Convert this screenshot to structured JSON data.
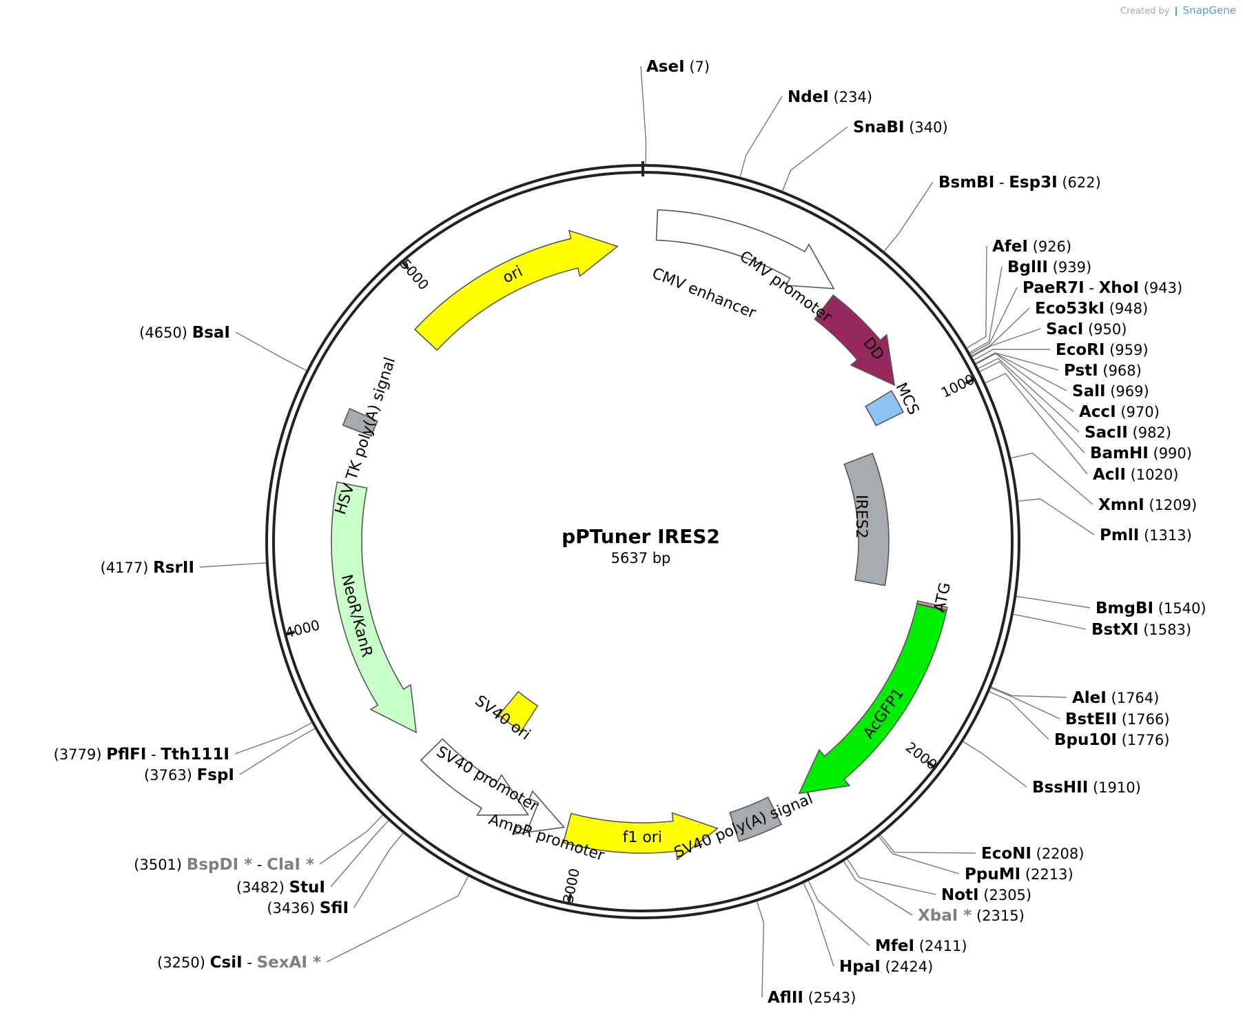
{
  "credit": {
    "prefix": "Created by",
    "brand": "SnapGene"
  },
  "plasmid": {
    "name": "pPTuner IRES2",
    "length_label": "5637 bp",
    "length": 5637
  },
  "ticks": [
    {
      "pos": 1000,
      "label": "1000"
    },
    {
      "pos": 2000,
      "label": "2000"
    },
    {
      "pos": 3000,
      "label": "3000"
    },
    {
      "pos": 4000,
      "label": "4000"
    },
    {
      "pos": 5000,
      "label": "5000"
    }
  ],
  "features": [
    {
      "id": "ori",
      "label": "ori",
      "color": "#ffff00",
      "start": 4900,
      "end": 5560,
      "dir": 1,
      "r": 430,
      "label_mode": "inside"
    },
    {
      "id": "cmv",
      "label": "CMV enhancer / CMV promoter",
      "color": "#ffffff",
      "start": 40,
      "end": 580,
      "dir": 1,
      "r": 460,
      "label_mode": "none"
    },
    {
      "id": "dd",
      "label": "DD",
      "color": "#96285f",
      "start": 590,
      "end": 910,
      "dir": 1,
      "r": 430,
      "label_mode": "none"
    },
    {
      "id": "mcs",
      "label": "MCS",
      "color": "#8fc3f5",
      "start": 920,
      "end": 995,
      "dir": 0,
      "r": 400,
      "label_mode": "none"
    },
    {
      "id": "ires2",
      "label": "IRES2",
      "color": "#a7abb0",
      "start": 1080,
      "end": 1570,
      "dir": 0,
      "r": 335,
      "label_mode": "none"
    },
    {
      "id": "atg",
      "label": "ATG",
      "color": "#e8a0c0",
      "start": 1600,
      "end": 1608,
      "dir": 0,
      "r": 430,
      "label_mode": "none"
    },
    {
      "id": "acgfp1",
      "label": "AcGFP1",
      "color": "#00ee00",
      "start": 1610,
      "end": 2320,
      "dir": 1,
      "r": 430,
      "label_mode": "inside"
    },
    {
      "id": "sv40pa",
      "label": "SV40 poly(A) signal",
      "color": "#a7abb0",
      "start": 2410,
      "end": 2540,
      "dir": 0,
      "r": 435,
      "label_mode": "none"
    },
    {
      "id": "f1ori",
      "label": "f1 ori",
      "color": "#ffff00",
      "start": 2590,
      "end": 3050,
      "dir": -1,
      "r": 430,
      "label_mode": "inside"
    },
    {
      "id": "ampr",
      "label": "AmpR promoter",
      "color": "#ffffff",
      "start": 3060,
      "end": 3160,
      "dir": -1,
      "r": 430,
      "label_mode": "none"
    },
    {
      "id": "sv40p",
      "label": "SV40 promoter",
      "color": "#ffffff",
      "start": 3175,
      "end": 3530,
      "dir": -1,
      "r": 430,
      "label_mode": "none"
    },
    {
      "id": "sv40ori",
      "label": "SV40 ori",
      "color": "#ffff00",
      "start": 3330,
      "end": 3440,
      "dir": 0,
      "r": 305,
      "label_mode": "none"
    },
    {
      "id": "neo",
      "label": "NeoR/KanR",
      "color": "#c8ffc8",
      "start": 3600,
      "end": 4400,
      "dir": -1,
      "r": 430,
      "label_mode": "inside"
    },
    {
      "id": "hsvtk",
      "label": "HSV TK poly(A) signal",
      "color": "#a7abb0",
      "start": 4560,
      "end": 4610,
      "dir": 0,
      "r": 445,
      "label_mode": "none"
    }
  ],
  "feature_labels": {
    "cmv_enhancer": "CMV enhancer",
    "cmv_promoter": "CMV promoter",
    "dd": "DD",
    "mcs": "MCS",
    "ires2": "IRES2",
    "atg": "ATG",
    "sv40pa": "SV40 poly(A) signal",
    "ampr": "AmpR promoter",
    "sv40p": "SV40 promoter",
    "sv40ori": "SV40 ori",
    "hsvtk": "HSV TK poly(A) signal"
  },
  "sites": [
    {
      "name": "AseI",
      "pos": "(7)",
      "bp": 7,
      "side": "R"
    },
    {
      "name": "NdeI",
      "pos": "(234)",
      "bp": 234,
      "side": "R"
    },
    {
      "name": "SnaBI",
      "pos": "(340)",
      "bp": 340,
      "side": "R"
    },
    {
      "name": "BsmBI",
      "name2": "Esp3I",
      "pos": "(622)",
      "bp": 622,
      "side": "R"
    },
    {
      "name": "AfeI",
      "pos": "(926)",
      "bp": 926,
      "side": "R"
    },
    {
      "name": "BglII",
      "pos": "(939)",
      "bp": 939,
      "side": "R"
    },
    {
      "name": "PaeR7I",
      "name2": "XhoI",
      "pos": "(943)",
      "bp": 943,
      "side": "R"
    },
    {
      "name": "Eco53kI",
      "pos": "(948)",
      "bp": 948,
      "side": "R"
    },
    {
      "name": "SacI",
      "pos": "(950)",
      "bp": 950,
      "side": "R"
    },
    {
      "name": "EcoRI",
      "pos": "(959)",
      "bp": 959,
      "side": "R"
    },
    {
      "name": "PstI",
      "pos": "(968)",
      "bp": 968,
      "side": "R"
    },
    {
      "name": "SalI",
      "pos": "(969)",
      "bp": 969,
      "side": "R"
    },
    {
      "name": "AccI",
      "pos": "(970)",
      "bp": 970,
      "side": "R"
    },
    {
      "name": "SacII",
      "pos": "(982)",
      "bp": 982,
      "side": "R"
    },
    {
      "name": "BamHI",
      "pos": "(990)",
      "bp": 990,
      "side": "R"
    },
    {
      "name": "AclI",
      "pos": "(1020)",
      "bp": 1020,
      "side": "R"
    },
    {
      "name": "XmnI",
      "pos": "(1209)",
      "bp": 1209,
      "side": "R"
    },
    {
      "name": "PmlI",
      "pos": "(1313)",
      "bp": 1313,
      "side": "R"
    },
    {
      "name": "BmgBI",
      "pos": "(1540)",
      "bp": 1540,
      "side": "R"
    },
    {
      "name": "BstXI",
      "pos": "(1583)",
      "bp": 1583,
      "side": "R"
    },
    {
      "name": "AleI",
      "pos": "(1764)",
      "bp": 1764,
      "side": "R"
    },
    {
      "name": "BstEII",
      "pos": "(1766)",
      "bp": 1766,
      "side": "R"
    },
    {
      "name": "Bpu10I",
      "pos": "(1776)",
      "bp": 1776,
      "side": "R"
    },
    {
      "name": "BssHII",
      "pos": "(1910)",
      "bp": 1910,
      "side": "R"
    },
    {
      "name": "EcoNI",
      "pos": "(2208)",
      "bp": 2208,
      "side": "R"
    },
    {
      "name": "PpuMI",
      "pos": "(2213)",
      "bp": 2213,
      "side": "R"
    },
    {
      "name": "NotI",
      "pos": "(2305)",
      "bp": 2305,
      "side": "R"
    },
    {
      "name": "XbaI *",
      "pos": "(2315)",
      "bp": 2315,
      "side": "R",
      "dim": true
    },
    {
      "name": "MfeI",
      "pos": "(2411)",
      "bp": 2411,
      "side": "R"
    },
    {
      "name": "HpaI",
      "pos": "(2424)",
      "bp": 2424,
      "side": "R"
    },
    {
      "name": "AflII",
      "pos": "(2543)",
      "bp": 2543,
      "side": "R"
    },
    {
      "name": "CsiI",
      "name2": "SexAI *",
      "pos": "(3250)",
      "bp": 3250,
      "side": "L",
      "dim2": true
    },
    {
      "name": "SfiI",
      "pos": "(3436)",
      "bp": 3436,
      "side": "L"
    },
    {
      "name": "StuI",
      "pos": "(3482)",
      "bp": 3482,
      "side": "L"
    },
    {
      "name": "BspDI *",
      "name2": "ClaI *",
      "pos": "(3501)",
      "bp": 3501,
      "side": "L",
      "dim": true,
      "dim2": true
    },
    {
      "name": "FspI",
      "pos": "(3763)",
      "bp": 3763,
      "side": "L"
    },
    {
      "name": "PflFI",
      "name2": "Tth111I",
      "pos": "(3779)",
      "bp": 3779,
      "side": "L"
    },
    {
      "name": "RsrII",
      "pos": "(4177)",
      "bp": 4177,
      "side": "L"
    },
    {
      "name": "BsaI",
      "pos": "(4650)",
      "bp": 4650,
      "side": "L"
    }
  ]
}
